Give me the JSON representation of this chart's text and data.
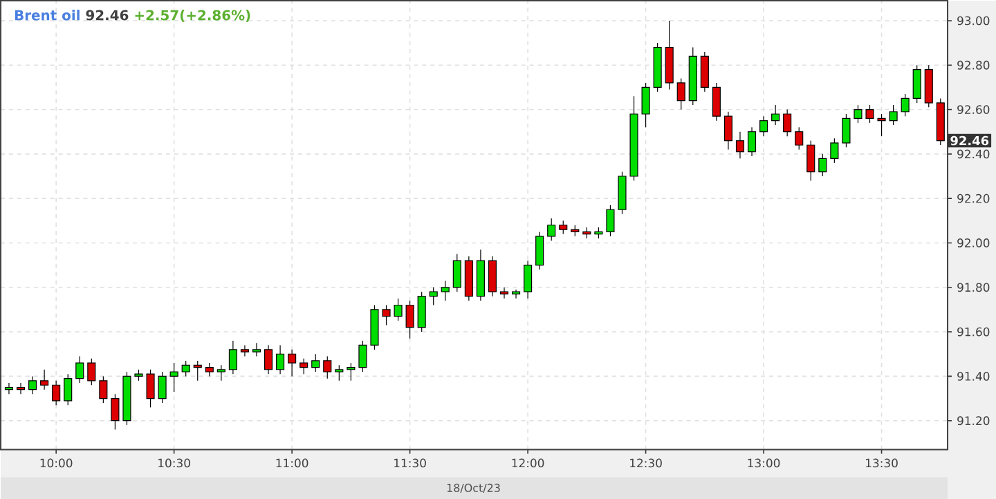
{
  "chart_data": {
    "type": "candlestick",
    "title": "Brent oil",
    "annotations": [
      "92.46",
      "+2.57(+2.86%)",
      "18/Oct/23",
      {
        "text": "92.46",
        "x": 13.78,
        "y": 92.46
      }
    ],
    "x": [
      9.8,
      9.85,
      9.9,
      9.95,
      10,
      10.05,
      10.1,
      10.15,
      10.2,
      10.25,
      10.3,
      10.35,
      10.4,
      10.45,
      10.5,
      10.55,
      10.6,
      10.65,
      10.7,
      10.75,
      10.8,
      10.85,
      10.9,
      10.95,
      11,
      11.05,
      11.1,
      11.15,
      11.2,
      11.25,
      11.3,
      11.35,
      11.4,
      11.45,
      11.5,
      11.55,
      11.6,
      11.65,
      11.7,
      11.75,
      11.8,
      11.85,
      11.9,
      11.95,
      12,
      12.05,
      12.1,
      12.15,
      12.2,
      12.25,
      12.3,
      12.35,
      12.4,
      12.45,
      12.5,
      12.55,
      12.6,
      12.65,
      12.7,
      12.75,
      12.8,
      12.85,
      12.9,
      12.95,
      13,
      13.05,
      13.1,
      13.15,
      13.2,
      13.25,
      13.3,
      13.35,
      13.4,
      13.45,
      13.5,
      13.55,
      13.6,
      13.65,
      13.7,
      13.75
    ],
    "ohlc": [
      [
        91.34,
        91.37,
        91.32,
        91.35
      ],
      [
        91.35,
        91.37,
        91.32,
        91.34
      ],
      [
        91.34,
        91.4,
        91.32,
        91.38
      ],
      [
        91.38,
        91.43,
        91.34,
        91.36
      ],
      [
        91.36,
        91.38,
        91.27,
        91.29
      ],
      [
        91.29,
        91.41,
        91.27,
        91.39
      ],
      [
        91.39,
        91.49,
        91.37,
        91.46
      ],
      [
        91.46,
        91.48,
        91.36,
        91.38
      ],
      [
        91.38,
        91.4,
        91.28,
        91.3
      ],
      [
        91.3,
        91.32,
        91.16,
        91.2
      ],
      [
        91.2,
        91.42,
        91.18,
        91.4
      ],
      [
        91.4,
        91.43,
        91.38,
        91.41
      ],
      [
        91.41,
        91.43,
        91.26,
        91.3
      ],
      [
        91.3,
        91.42,
        91.28,
        91.4
      ],
      [
        91.4,
        91.46,
        91.33,
        91.42
      ],
      [
        91.42,
        91.47,
        91.4,
        91.45
      ],
      [
        91.45,
        91.47,
        91.38,
        91.44
      ],
      [
        91.44,
        91.46,
        91.4,
        91.42
      ],
      [
        91.42,
        91.45,
        91.38,
        91.43
      ],
      [
        91.43,
        91.56,
        91.41,
        91.52
      ],
      [
        91.52,
        91.54,
        91.49,
        91.51
      ],
      [
        91.51,
        91.55,
        91.49,
        91.52
      ],
      [
        91.52,
        91.54,
        91.41,
        91.43
      ],
      [
        91.43,
        91.54,
        91.41,
        91.5
      ],
      [
        91.5,
        91.52,
        91.4,
        91.46
      ],
      [
        91.46,
        91.48,
        91.41,
        91.44
      ],
      [
        91.44,
        91.5,
        91.42,
        91.47
      ],
      [
        91.47,
        91.49,
        91.39,
        91.42
      ],
      [
        91.42,
        91.45,
        91.38,
        91.43
      ],
      [
        91.43,
        91.46,
        91.38,
        91.44
      ],
      [
        91.44,
        91.56,
        91.42,
        91.54
      ],
      [
        91.54,
        91.72,
        91.52,
        91.7
      ],
      [
        91.7,
        91.72,
        91.63,
        91.67
      ],
      [
        91.67,
        91.75,
        91.65,
        91.72
      ],
      [
        91.72,
        91.74,
        91.57,
        91.62
      ],
      [
        91.62,
        91.78,
        91.6,
        91.76
      ],
      [
        91.76,
        91.8,
        91.72,
        91.78
      ],
      [
        91.78,
        91.83,
        91.74,
        91.8
      ],
      [
        91.8,
        91.95,
        91.78,
        91.92
      ],
      [
        91.92,
        91.94,
        91.74,
        91.76
      ],
      [
        91.76,
        91.97,
        91.74,
        91.92
      ],
      [
        91.92,
        91.94,
        91.76,
        91.78
      ],
      [
        91.78,
        91.8,
        91.75,
        91.77
      ],
      [
        91.77,
        91.79,
        91.75,
        91.78
      ],
      [
        91.78,
        91.92,
        91.75,
        91.9
      ],
      [
        91.9,
        92.05,
        91.88,
        92.03
      ],
      [
        92.03,
        92.11,
        92.01,
        92.08
      ],
      [
        92.08,
        92.1,
        92.04,
        92.06
      ],
      [
        92.06,
        92.08,
        92.03,
        92.05
      ],
      [
        92.05,
        92.07,
        92.02,
        92.04
      ],
      [
        92.04,
        92.07,
        92.02,
        92.05
      ],
      [
        92.05,
        92.17,
        92.03,
        92.15
      ],
      [
        92.15,
        92.32,
        92.13,
        92.3
      ],
      [
        92.3,
        92.66,
        92.28,
        92.58
      ],
      [
        92.58,
        92.72,
        92.52,
        92.7
      ],
      [
        92.7,
        92.9,
        92.68,
        92.88
      ],
      [
        92.88,
        93.0,
        92.69,
        92.72
      ],
      [
        92.72,
        92.74,
        92.6,
        92.64
      ],
      [
        92.64,
        92.88,
        92.62,
        92.84
      ],
      [
        92.84,
        92.86,
        92.68,
        92.7
      ],
      [
        92.7,
        92.72,
        92.55,
        92.57
      ],
      [
        92.57,
        92.59,
        92.42,
        92.46
      ],
      [
        92.46,
        92.5,
        92.38,
        92.41
      ],
      [
        92.41,
        92.52,
        92.39,
        92.5
      ],
      [
        92.5,
        92.57,
        92.48,
        92.55
      ],
      [
        92.55,
        92.62,
        92.53,
        92.58
      ],
      [
        92.58,
        92.6,
        92.48,
        92.5
      ],
      [
        92.5,
        92.52,
        92.42,
        92.44
      ],
      [
        92.44,
        92.46,
        92.28,
        92.32
      ],
      [
        92.32,
        92.4,
        92.3,
        92.38
      ],
      [
        92.38,
        92.47,
        92.36,
        92.45
      ],
      [
        92.45,
        92.58,
        92.43,
        92.56
      ],
      [
        92.56,
        92.62,
        92.54,
        92.6
      ],
      [
        92.6,
        92.62,
        92.54,
        92.56
      ],
      [
        92.56,
        92.58,
        92.48,
        92.55
      ],
      [
        92.55,
        92.62,
        92.53,
        92.59
      ],
      [
        92.59,
        92.67,
        92.57,
        92.65
      ],
      [
        92.65,
        92.8,
        92.63,
        92.78
      ],
      [
        92.78,
        92.8,
        92.61,
        92.63
      ],
      [
        92.63,
        92.65,
        92.44,
        92.46
      ]
    ],
    "colors": [
      "#00dd00",
      "#dd0000",
      "#00dd00",
      "#dd0000",
      "#dd0000",
      "#00dd00",
      "#00dd00",
      "#dd0000",
      "#dd0000",
      "#dd0000",
      "#00dd00",
      "#00dd00",
      "#dd0000",
      "#00dd00",
      "#00dd00",
      "#00dd00",
      "#dd0000",
      "#dd0000",
      "#00dd00",
      "#00dd00",
      "#dd0000",
      "#00dd00",
      "#dd0000",
      "#00dd00",
      "#dd0000",
      "#dd0000",
      "#00dd00",
      "#dd0000",
      "#00dd00",
      "#00dd00",
      "#00dd00",
      "#00dd00",
      "#dd0000",
      "#00dd00",
      "#dd0000",
      "#00dd00",
      "#00dd00",
      "#00dd00",
      "#00dd00",
      "#dd0000",
      "#00dd00",
      "#dd0000",
      "#dd0000",
      "#00dd00",
      "#00dd00",
      "#00dd00",
      "#00dd00",
      "#dd0000",
      "#dd0000",
      "#dd0000",
      "#00dd00",
      "#00dd00",
      "#00dd00",
      "#00dd00",
      "#00dd00",
      "#00dd00",
      "#dd0000",
      "#dd0000",
      "#00dd00",
      "#dd0000",
      "#dd0000",
      "#dd0000",
      "#dd0000",
      "#00dd00",
      "#00dd00",
      "#00dd00",
      "#dd0000",
      "#dd0000",
      "#dd0000",
      "#00dd00",
      "#00dd00",
      "#00dd00",
      "#00dd00",
      "#dd0000",
      "#dd0000",
      "#00dd00",
      "#00dd00",
      "#00dd00",
      "#dd0000",
      "#dd0000"
    ],
    "xlim": [
      9.765,
      13.78
    ],
    "ylim": [
      91.07,
      93.09
    ],
    "xticks": [
      {
        "value": 10,
        "label": "10:00"
      },
      {
        "value": 10.5,
        "label": "10:30"
      },
      {
        "value": 11,
        "label": "11:00"
      },
      {
        "value": 11.5,
        "label": "11:30"
      },
      {
        "value": 12,
        "label": "12:00"
      },
      {
        "value": 12.5,
        "label": "12:30"
      },
      {
        "value": 13,
        "label": "13:00"
      },
      {
        "value": 13.5,
        "label": "13:30"
      }
    ],
    "yticks": [
      {
        "value": 91.2,
        "label": "91.20"
      },
      {
        "value": 91.4,
        "label": "91.40"
      },
      {
        "value": 91.6,
        "label": "91.60"
      },
      {
        "value": 91.8,
        "label": "91.80"
      },
      {
        "value": 92.0,
        "label": "92.00"
      },
      {
        "value": 92.2,
        "label": "92.20"
      },
      {
        "value": 92.4,
        "label": "92.40"
      },
      {
        "value": 92.6,
        "label": "92.60"
      },
      {
        "value": 92.8,
        "label": "92.80"
      },
      {
        "value": 93.0,
        "label": "93.00"
      }
    ],
    "grid": true
  }
}
